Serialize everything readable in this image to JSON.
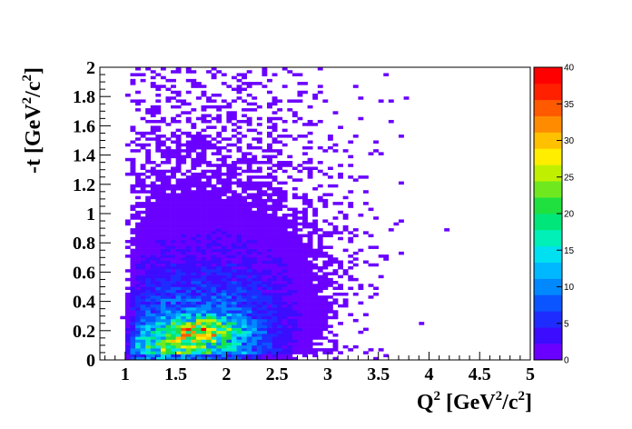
{
  "chart_data": {
    "type": "heatmap",
    "title": "",
    "xlabel": {
      "base": "Q",
      "sup": "2",
      "unit_pre": " [GeV",
      "unit_sup": "2",
      "unit_mid": "/c",
      "unit_sup2": "2",
      "unit_post": "]"
    },
    "ylabel": {
      "base": "-t",
      "unit_pre": " [GeV",
      "unit_sup": "2",
      "unit_mid": "/c",
      "unit_sup2": "2",
      "unit_post": "]"
    },
    "xlim": [
      0.75,
      5.0
    ],
    "ylim": [
      0.0,
      2.0
    ],
    "x_ticks": [
      "1",
      "1.5",
      "2",
      "2.5",
      "3",
      "3.5",
      "4",
      "4.5",
      "5"
    ],
    "y_ticks": [
      "0",
      "0.2",
      "0.4",
      "0.6",
      "0.8",
      "1",
      "1.2",
      "1.4",
      "1.6",
      "1.8",
      "2"
    ],
    "colorbar": {
      "range": [
        0,
        40
      ],
      "labels": [
        "0",
        "5",
        "10",
        "15",
        "20",
        "25",
        "30",
        "35",
        "40"
      ],
      "palette": [
        "#6a00ff",
        "#3c0cff",
        "#1e2cff",
        "#0a55ff",
        "#0088ff",
        "#00b8ff",
        "#00e0f0",
        "#00f0b8",
        "#00e67a",
        "#20e040",
        "#70e820",
        "#c0f000",
        "#ffee00",
        "#ffc000",
        "#ff8c00",
        "#ff5a00",
        "#ff2000",
        "#ff0000"
      ]
    },
    "bin_width": {
      "x": 0.05,
      "y": 0.02
    },
    "density_model": {
      "peak": {
        "x": 1.8,
        "y": 0.2,
        "max_count": 38
      },
      "description": "Counts per bin, concentrated near low -t and Q^2 ~ 1.5-2.2, falling off toward higher -t and higher Q^2; sparse scattered single-count bins extend to Q^2 ~ 4.8"
    }
  }
}
